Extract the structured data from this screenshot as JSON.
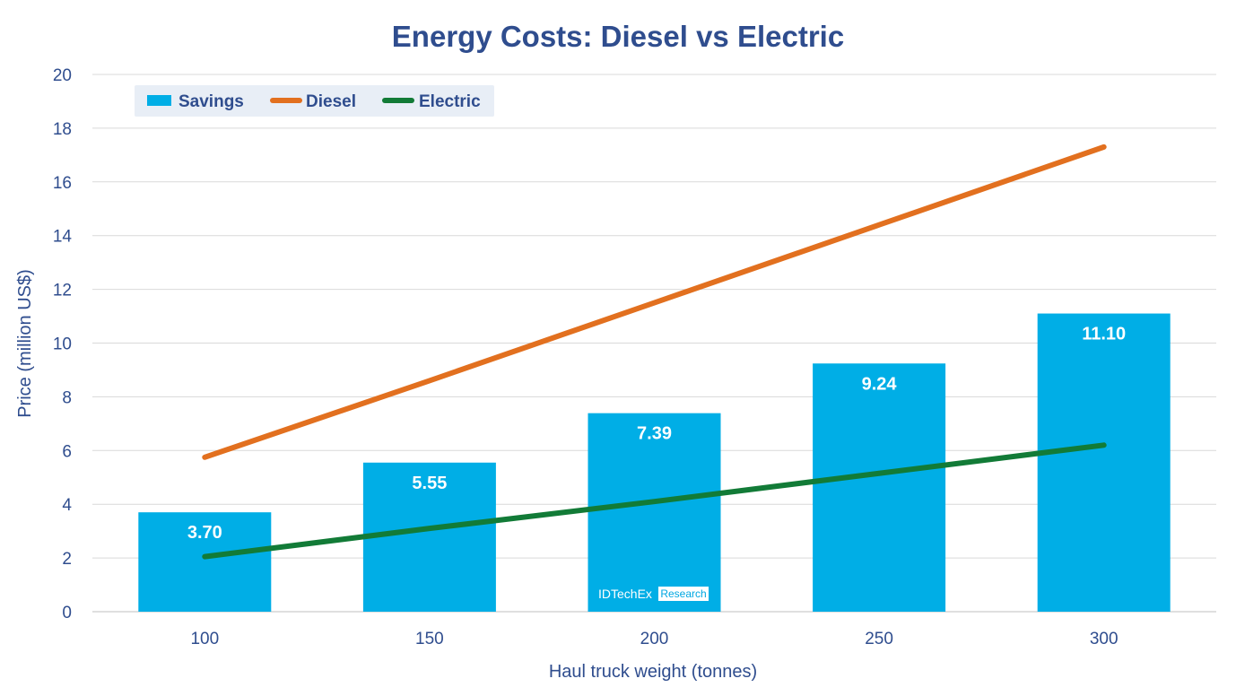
{
  "chart_data": {
    "type": "bar",
    "title": "Energy Costs: Diesel vs Electric",
    "xlabel": "Haul truck weight (tonnes)",
    "ylabel": "Price (million US$)",
    "categories": [
      "100",
      "150",
      "200",
      "250",
      "300"
    ],
    "ylim": [
      0,
      20
    ],
    "yticks": [
      0,
      2,
      4,
      6,
      8,
      10,
      12,
      14,
      16,
      18,
      20
    ],
    "grid": true,
    "legend_position": "top-left",
    "series": [
      {
        "name": "Savings",
        "type": "bar",
        "color": "#00aee6",
        "values": [
          3.7,
          5.55,
          7.39,
          9.24,
          11.1
        ],
        "labels": [
          "3.70",
          "5.55",
          "7.39",
          "9.24",
          "11.10"
        ]
      },
      {
        "name": "Diesel",
        "type": "line",
        "color": "#e2701f",
        "values": [
          5.75,
          8.6,
          11.5,
          14.4,
          17.3
        ]
      },
      {
        "name": "Electric",
        "type": "line",
        "color": "#127b37",
        "values": [
          2.05,
          3.1,
          4.1,
          5.15,
          6.2
        ]
      }
    ]
  },
  "watermark": {
    "brand": "IDTechEx",
    "tag": "Research"
  },
  "colors": {
    "text": "#2f4d8e",
    "grid": "#d9d9d9",
    "legend_bg": "#e8eef6"
  }
}
